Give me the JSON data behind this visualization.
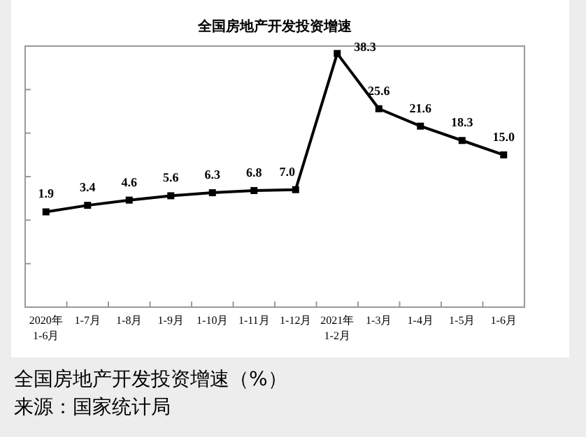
{
  "chart_data": {
    "type": "line",
    "title": "全国房地产开发投资增速",
    "categories": [
      "2020年\n1-6月",
      "1-7月",
      "1-8月",
      "1-9月",
      "1-10月",
      "1-11月",
      "1-12月",
      "2021年\n1-2月",
      "1-3月",
      "1-4月",
      "1-5月",
      "1-6月"
    ],
    "series": [
      {
        "color": "#000000",
        "values": [
          1.9,
          3.4,
          4.6,
          5.6,
          6.3,
          6.8,
          7.0,
          38.3,
          25.6,
          21.6,
          18.3,
          15.0
        ],
        "value_labels": [
          "1.9",
          "3.4",
          "4.6",
          "5.6",
          "6.3",
          "6.8",
          "7.0",
          "38.3",
          "25.6",
          "21.6",
          "18.3",
          "15.0"
        ]
      }
    ],
    "ylim": [
      -20,
      40
    ],
    "yticks": [
      {
        "value": -20,
        "label": null
      },
      {
        "value": -10,
        "label": null
      },
      {
        "value": 0,
        "label": null
      },
      {
        "value": 10,
        "label": null
      },
      {
        "value": 20,
        "label": null
      },
      {
        "value": 30,
        "label": null
      },
      {
        "value": 40,
        "label": null
      }
    ],
    "marker": "square",
    "line_style": "solid",
    "annotations": [
      "全国房地产开发投资增速（%）",
      "来源：国家统计局"
    ]
  }
}
